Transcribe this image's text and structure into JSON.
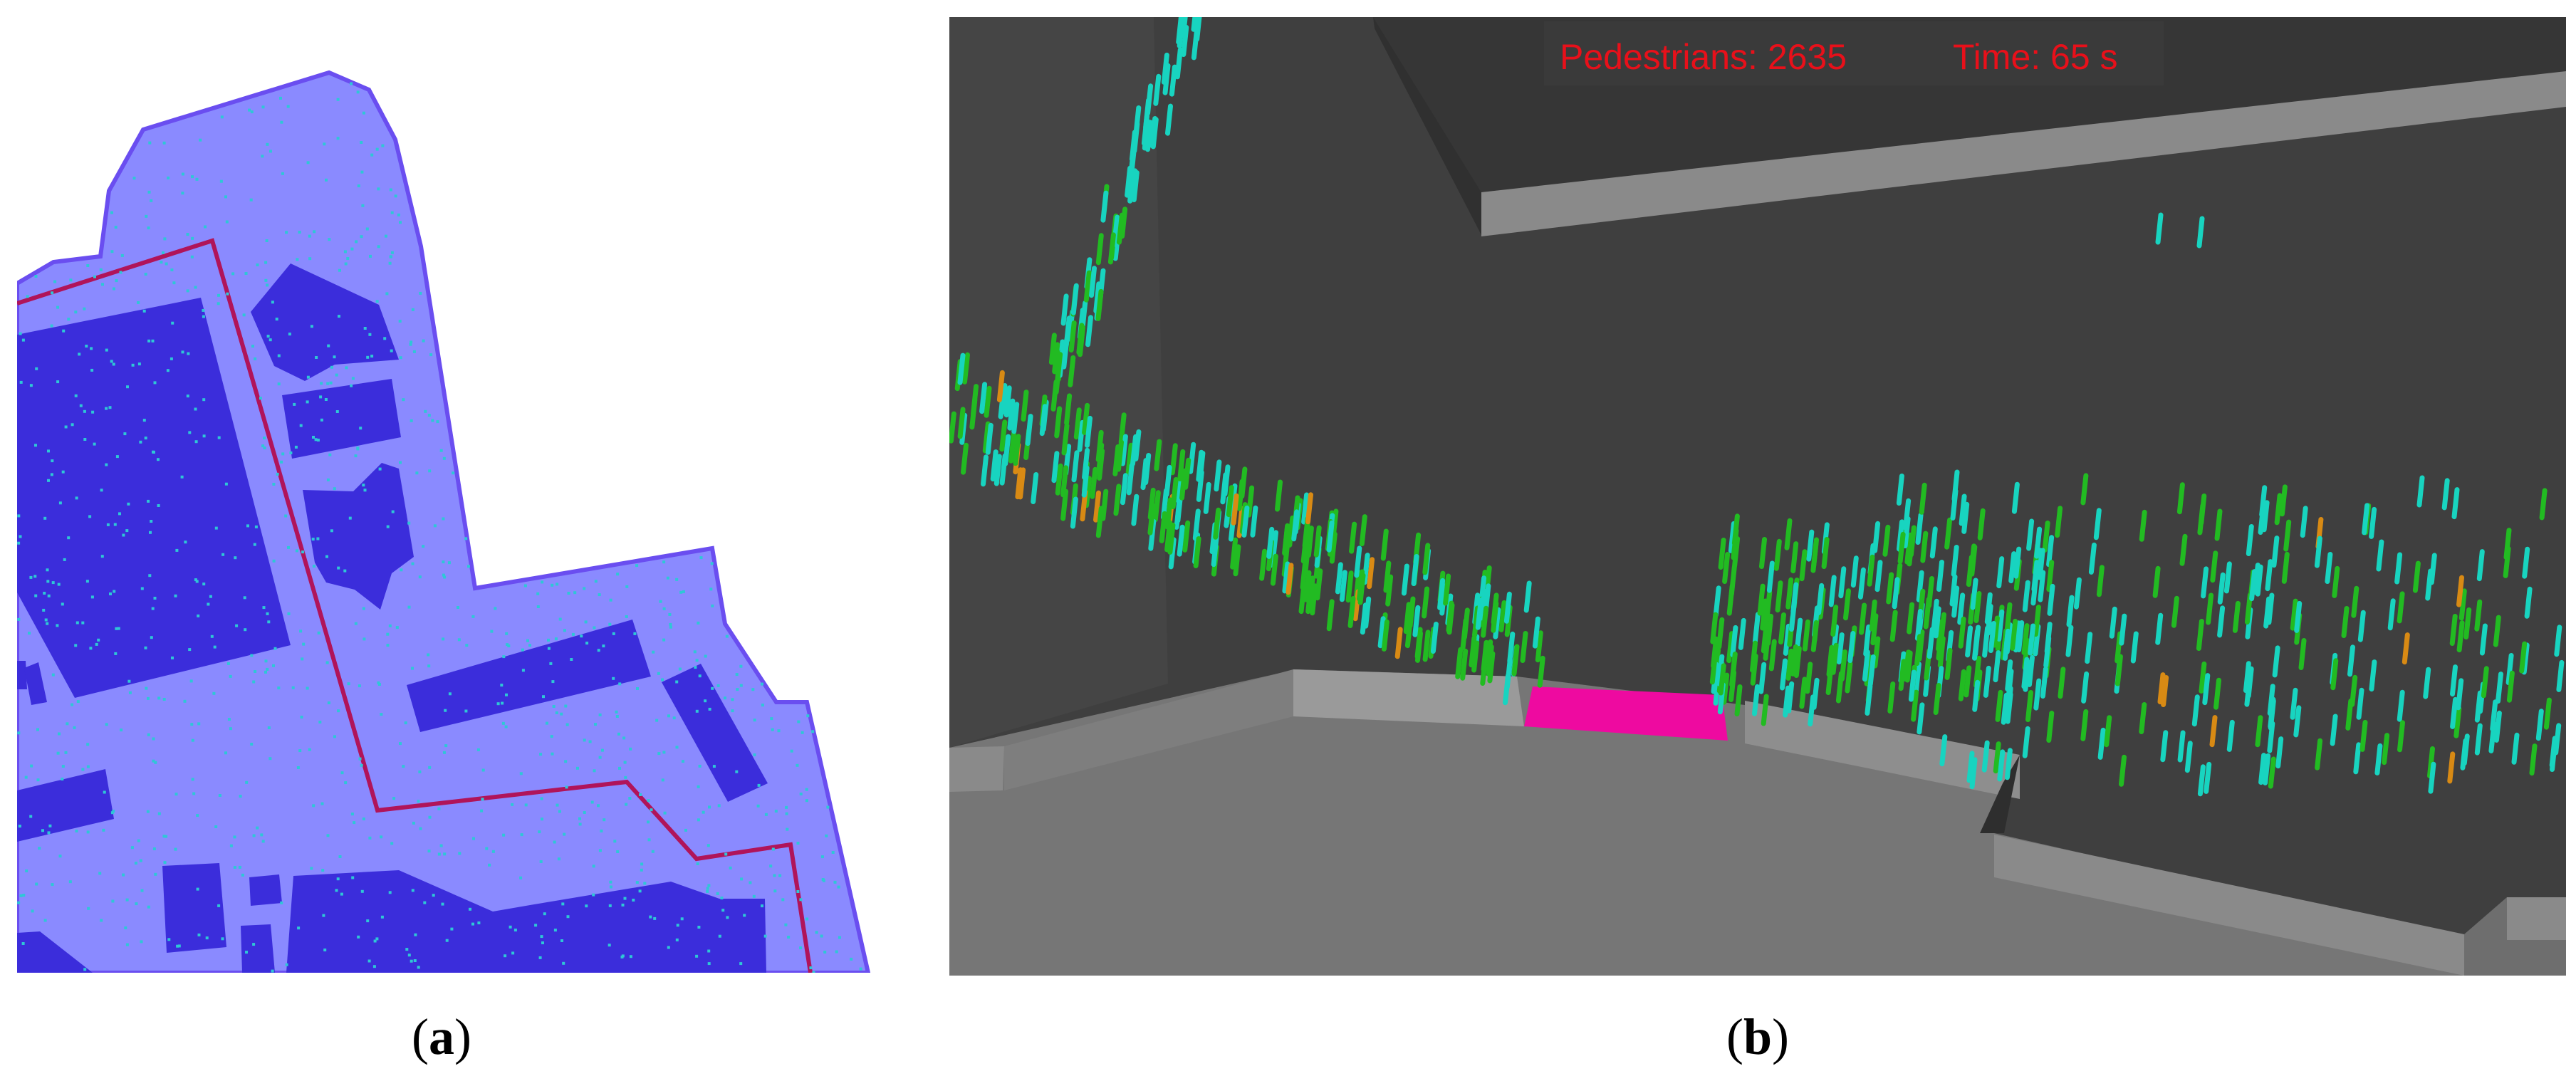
{
  "figure": {
    "panel_a": {
      "label_open": "(",
      "label_letter": "a",
      "label_close": ")"
    },
    "panel_b": {
      "label_open": "(",
      "label_letter": "b",
      "label_close": ")",
      "hud": {
        "pedestrians_text": "Pedestrians: 2635",
        "time_text": "Time: 65 s"
      }
    }
  },
  "colors": {
    "map_area_fill": "#8a8aff",
    "map_area_stroke": "#6a4ef0",
    "building_fill": "#3b2ddb",
    "route_line": "#b0145a",
    "agent_dot": "#2ec7d6",
    "scene_floor": "#767676",
    "scene_wall": "#3f3f3f",
    "scene_curb": "#8c8c8c",
    "hud_bg": "#3a3a3a",
    "hud_text": "#e8101a",
    "pink_block": "#ee0aa0",
    "ped_cyan": "#18d4c0",
    "ped_green": "#22bb22",
    "ped_orange": "#d88a14"
  }
}
